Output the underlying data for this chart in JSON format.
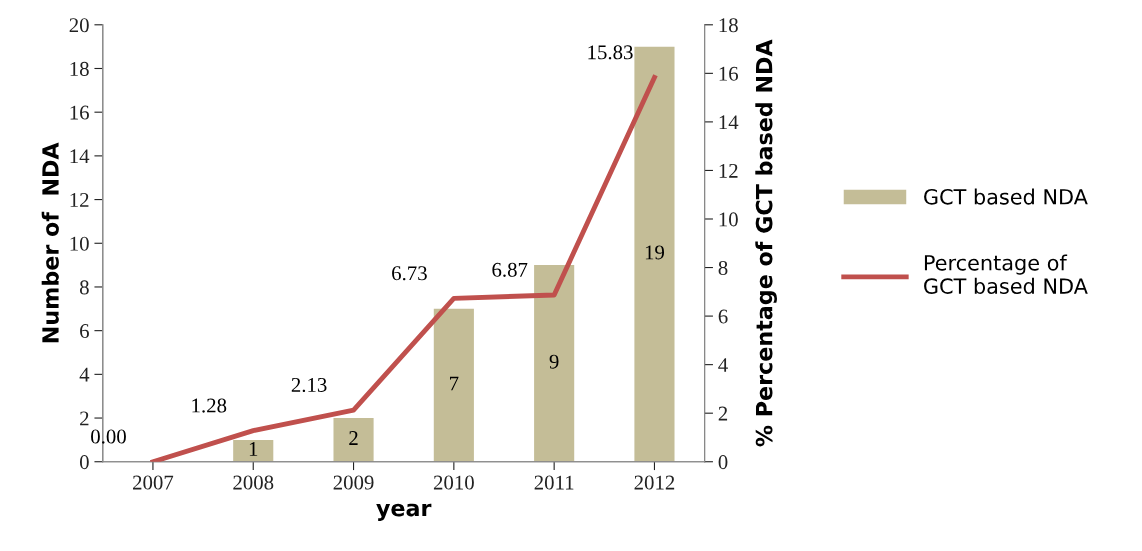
{
  "chart_data": {
    "type": "bar",
    "xlabel": "year",
    "ylabel": "Number of  NDA",
    "y2label": "% Percentage of GCT based NDA",
    "categories": [
      "2007",
      "2008",
      "2009",
      "2010",
      "2011",
      "2012"
    ],
    "series": [
      {
        "name": "GCT based NDA",
        "color": "#c4bd97",
        "values": [
          0,
          1,
          2,
          7,
          9,
          19
        ],
        "value_labels": [
          null,
          "1",
          "2",
          "7",
          "9",
          "19"
        ]
      },
      {
        "name": "Percentage of\nGCT based NDA",
        "type": "line",
        "axis": "y2",
        "color": "#c0504d",
        "values": [
          0.0,
          1.28,
          2.13,
          6.73,
          6.87,
          15.83
        ],
        "value_labels": [
          "0.00",
          "1.28",
          "2.13",
          "6.73",
          "6.87",
          "15.83"
        ]
      }
    ],
    "ylim": [
      0,
      20
    ],
    "yticks": [
      0,
      2,
      4,
      6,
      8,
      10,
      12,
      14,
      16,
      18,
      20
    ],
    "y2lim": [
      0,
      18
    ],
    "y2ticks": [
      0,
      2,
      4,
      6,
      8,
      10,
      12,
      14,
      16,
      18
    ],
    "grid": false,
    "legend": "right",
    "marker": "none",
    "line_style": "solid"
  }
}
